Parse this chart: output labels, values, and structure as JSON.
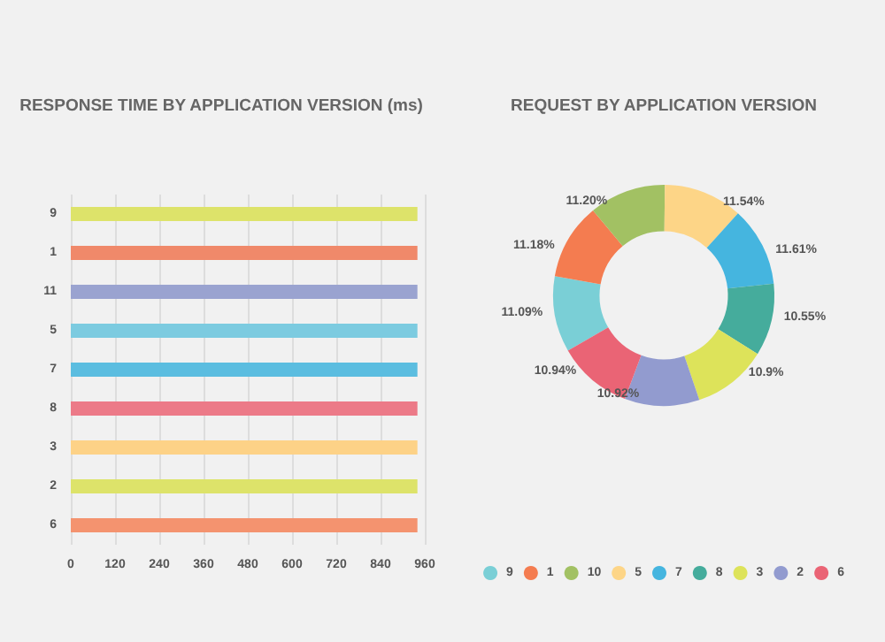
{
  "chart_data": [
    {
      "type": "bar",
      "orientation": "horizontal",
      "title": "RESPONSE TIME BY APPLICATION VERSION (ms)",
      "categories": [
        "9",
        "1",
        "11",
        "5",
        "7",
        "8",
        "3",
        "2",
        "6"
      ],
      "values": [
        940,
        940,
        940,
        940,
        940,
        940,
        940,
        940,
        940
      ],
      "colors": [
        "#dde36a",
        "#f0896a",
        "#9aa3d0",
        "#7ccbe0",
        "#5bbde0",
        "#ec7a88",
        "#fdd287",
        "#dde36a",
        "#f4936f"
      ],
      "xlim": [
        0,
        960
      ],
      "xticks": [
        0,
        120,
        240,
        360,
        480,
        600,
        720,
        840,
        960
      ],
      "grid": "x"
    },
    {
      "type": "donut",
      "title": "REQUEST BY APPLICATION VERSION",
      "categories": [
        "9",
        "1",
        "10",
        "5",
        "7",
        "8",
        "3",
        "2",
        "6"
      ],
      "values": [
        11.09,
        11.18,
        11.2,
        11.54,
        11.61,
        10.55,
        10.9,
        10.92,
        10.94
      ],
      "value_labels": [
        "11.09%",
        "11.18%",
        "11.20%",
        "11.54%",
        "11.61%",
        "10.55%",
        "10.9%",
        "10.92%",
        "10.94%"
      ],
      "colors": [
        "#7acfd6",
        "#f47c50",
        "#a2c163",
        "#fdd587",
        "#45b5df",
        "#45ac9c",
        "#dde35a",
        "#929bcf",
        "#ea6475"
      ],
      "legend": "bottom"
    }
  ]
}
